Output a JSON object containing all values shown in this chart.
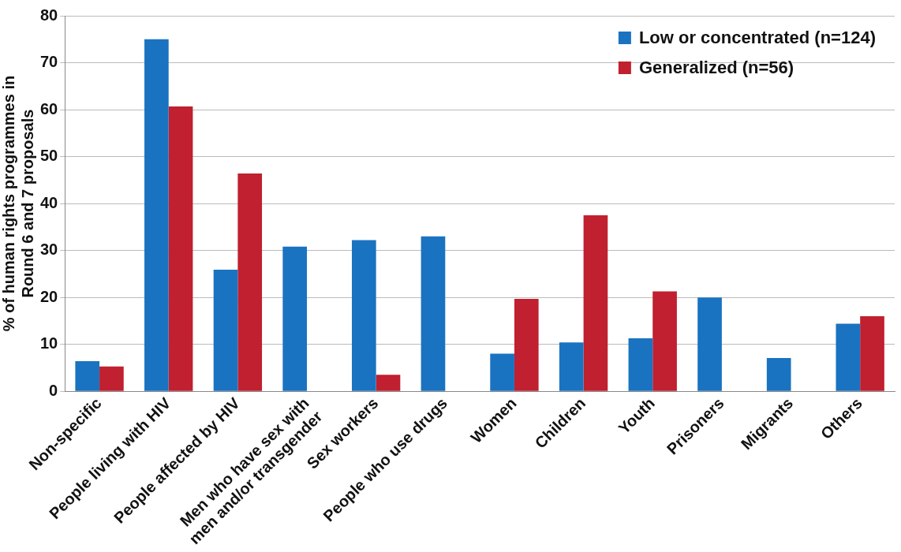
{
  "chart_data": {
    "type": "bar",
    "ylabel": "% of human rights programmes in\nRound 6 and 7 proposals",
    "categories": [
      "Non-specific",
      "People living with HIV",
      "People affected by HIV",
      "Men who have sex with\nmen and/or transgender",
      "Sex workers",
      "People who use drugs",
      "Women",
      "Children",
      "Youth",
      "Prisoners",
      "Migrants",
      "Others"
    ],
    "series": [
      {
        "name": "Low or concentrated (n=124)",
        "color": "#1a73c1",
        "values": [
          6.4,
          75.0,
          25.9,
          30.8,
          32.2,
          33.0,
          8.0,
          10.4,
          11.3,
          20.0,
          7.1,
          14.4
        ]
      },
      {
        "name": "Generalized (n=56)",
        "color": "#c0202f",
        "values": [
          5.3,
          60.7,
          46.4,
          0,
          3.5,
          0,
          19.7,
          37.5,
          21.3,
          0,
          0,
          16.0
        ]
      }
    ],
    "ylim": [
      0,
      80
    ],
    "yticks": [
      0,
      10,
      20,
      30,
      40,
      50,
      60,
      70,
      80
    ],
    "grid": "y",
    "legend": "top right"
  }
}
